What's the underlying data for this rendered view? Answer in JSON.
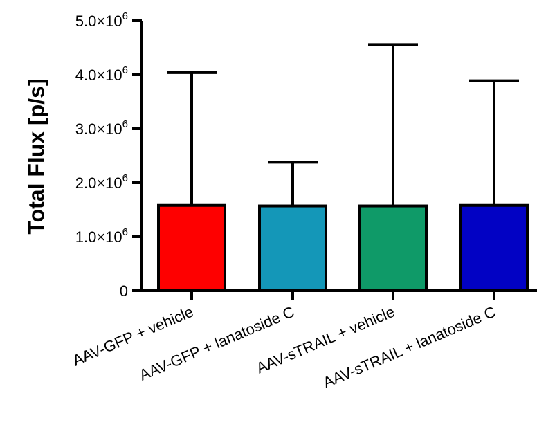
{
  "chart_data": {
    "type": "bar",
    "title": "",
    "xlabel": "",
    "ylabel": "Total Flux [p/s]",
    "ylim": [
      0,
      5000000
    ],
    "y_ticks": [
      {
        "value": 0,
        "mantissa": "0",
        "exponent": ""
      },
      {
        "value": 1000000,
        "mantissa": "1.0×10",
        "exponent": "6"
      },
      {
        "value": 2000000,
        "mantissa": "2.0×10",
        "exponent": "6"
      },
      {
        "value": 3000000,
        "mantissa": "3.0×10",
        "exponent": "6"
      },
      {
        "value": 4000000,
        "mantissa": "4.0×10",
        "exponent": "6"
      },
      {
        "value": 5000000,
        "mantissa": "5.0×10",
        "exponent": "6"
      }
    ],
    "categories": [
      "AAV-GFP + vehicle",
      "AAV-GFP + lanatoside C",
      "AAV-sTRAIL + vehicle",
      "AAV-sTRAIL + lanatoside C"
    ],
    "values": [
      1580000,
      1570000,
      1570000,
      1580000
    ],
    "error_upper": [
      4040000,
      2380000,
      4560000,
      3890000
    ],
    "colors": [
      "#fe0000",
      "#1497b8",
      "#0f9a68",
      "#0202c4"
    ],
    "grid": false,
    "legend": "none"
  }
}
